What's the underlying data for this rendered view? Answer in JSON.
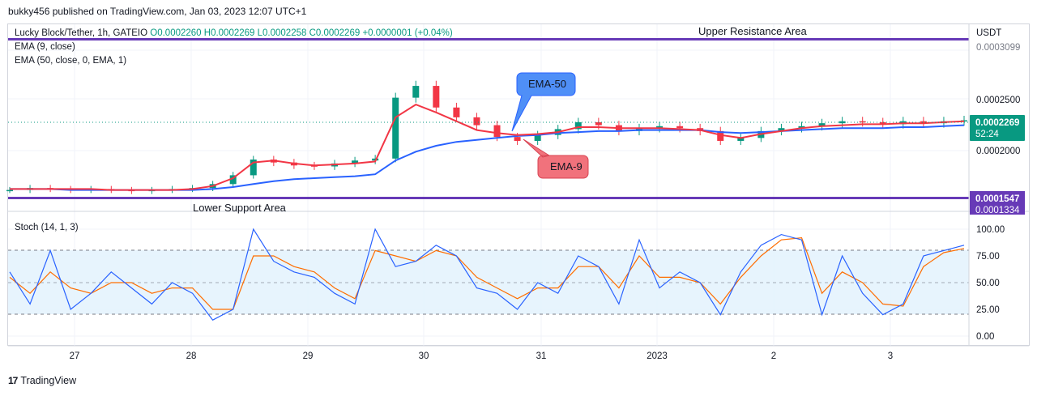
{
  "header": {
    "text": "bukky456 published on TradingView.com, Jan 03, 2023 12:07 UTC+1"
  },
  "legend": {
    "symbol": "Lucky Block/Tether, 1h, GATEIO",
    "ohlc": "O0.0002260 H0.0002269 L0.0002258 C0.0002269 +0.0000001 (+0.04%)",
    "ema9": "EMA (9, close)",
    "ema50": "EMA (50, close, 0, EMA, 1)",
    "stoch": "Stoch (14, 1, 3)"
  },
  "annotations": {
    "upper": "Upper Resistance Area",
    "lower": "Lower Support Area",
    "ema50_callout": "EMA-50",
    "ema9_callout": "EMA-9"
  },
  "price_axis": {
    "currency": "USDT",
    "ticks": [
      "0.0002500",
      "0.0002000"
    ],
    "current_price": "0.0002269",
    "countdown": "52:24",
    "lower_label_1": "0.0001547",
    "lower_label_2": "0.0001334",
    "upper_label": "0.0003099"
  },
  "stoch_axis": {
    "ticks": [
      "100.00",
      "75.00",
      "50.00",
      "25.00",
      "0.00"
    ]
  },
  "time_axis": {
    "ticks": [
      "27",
      "28",
      "29",
      "30",
      "31",
      "2023",
      "2",
      "3"
    ]
  },
  "footer": {
    "brand": "TradingView",
    "logo": "17"
  },
  "colors": {
    "up": "#089981",
    "down": "#f23645",
    "ema9": "#f23645",
    "ema50": "#2962ff",
    "resistance": "#673ab7",
    "stoch_k": "#2962ff",
    "stoch_d": "#ff6d00",
    "band": "#e3f2fd",
    "callout_blue": "#4f8ff7",
    "callout_red": "#f1727c"
  },
  "chart_data": {
    "type": "candlestick",
    "price_scale": {
      "min": 0.0001334,
      "max": 0.0003099
    },
    "resistance_level": 0.0003099,
    "support_level": 0.0001547,
    "time_points": [
      "27",
      "28",
      "29",
      "30",
      "31",
      "2023",
      "2",
      "3"
    ],
    "close": [
      0.000156,
      0.000158,
      0.000157,
      0.000156,
      0.000157,
      0.000156,
      0.000155,
      0.000156,
      0.000157,
      0.000158,
      0.000162,
      0.000171,
      0.000187,
      0.000184,
      0.000181,
      0.00018,
      0.000183,
      0.000186,
      0.000188,
      0.00025,
      0.000262,
      0.00024,
      0.00023,
      0.000222,
      0.00021,
      0.000206,
      0.000212,
      0.000218,
      0.000225,
      0.000222,
      0.000216,
      0.000219,
      0.000221,
      0.000219,
      0.000216,
      0.000206,
      0.000209,
      0.000216,
      0.000219,
      0.000221,
      0.000224,
      0.000226,
      0.000225,
      0.000223,
      0.000226,
      0.000224,
      0.000226,
      0.000227
    ],
    "ema9": [
      0.000157,
      0.000157,
      0.000157,
      0.000157,
      0.000157,
      0.000156,
      0.000156,
      0.000156,
      0.000156,
      0.000157,
      0.00016,
      0.000168,
      0.000184,
      0.000186,
      0.000183,
      0.000181,
      0.000182,
      0.000183,
      0.000185,
      0.00023,
      0.000243,
      0.000235,
      0.000226,
      0.000217,
      0.000214,
      0.000212,
      0.000213,
      0.000215,
      0.00022,
      0.00022,
      0.000219,
      0.000219,
      0.000219,
      0.000218,
      0.000217,
      0.000212,
      0.000209,
      0.000213,
      0.000216,
      0.000219,
      0.000221,
      0.000222,
      0.000223,
      0.000223,
      0.000224,
      0.000224,
      0.000225,
      0.000226
    ],
    "ema50": [
      0.000157,
      0.000157,
      0.000157,
      0.000156,
      0.000156,
      0.000156,
      0.000156,
      0.000156,
      0.000156,
      0.000156,
      0.000157,
      0.000159,
      0.000162,
      0.000165,
      0.000167,
      0.000168,
      0.000169,
      0.00017,
      0.000172,
      0.000186,
      0.000195,
      0.000201,
      0.000205,
      0.000207,
      0.000209,
      0.000211,
      0.000212,
      0.000214,
      0.000215,
      0.000216,
      0.000216,
      0.000217,
      0.000217,
      0.000217,
      0.000217,
      0.000215,
      0.000214,
      0.000215,
      0.000216,
      0.000217,
      0.000218,
      0.000219,
      0.000219,
      0.000219,
      0.00022,
      0.00022,
      0.000221,
      0.000222
    ],
    "stoch": {
      "range": [
        0,
        100
      ],
      "levels": [
        80,
        50,
        20
      ],
      "k": [
        60,
        30,
        80,
        25,
        40,
        60,
        45,
        30,
        50,
        40,
        15,
        25,
        100,
        70,
        60,
        55,
        40,
        30,
        100,
        65,
        70,
        85,
        75,
        45,
        40,
        25,
        50,
        40,
        75,
        65,
        30,
        90,
        45,
        60,
        50,
        20,
        60,
        85,
        95,
        90,
        20,
        75,
        40,
        20,
        30,
        75,
        80,
        85
      ],
      "d": [
        55,
        40,
        60,
        45,
        40,
        50,
        50,
        40,
        45,
        45,
        25,
        25,
        75,
        75,
        65,
        60,
        45,
        35,
        80,
        75,
        70,
        80,
        75,
        55,
        45,
        35,
        45,
        45,
        65,
        65,
        45,
        75,
        55,
        55,
        50,
        30,
        55,
        75,
        90,
        92,
        40,
        60,
        50,
        30,
        28,
        65,
        78,
        82
      ]
    }
  }
}
